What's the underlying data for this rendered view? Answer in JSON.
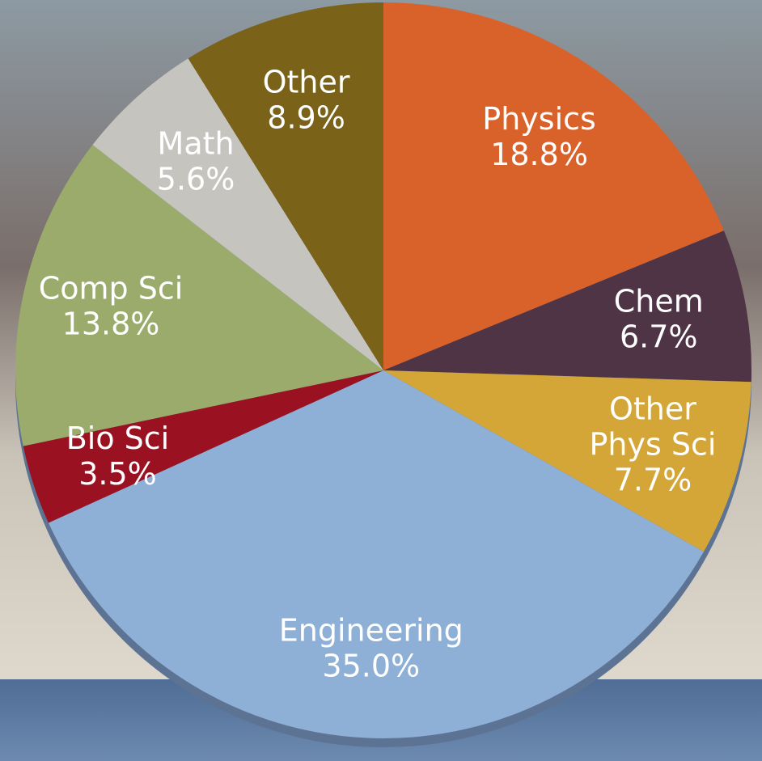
{
  "chart_data": {
    "type": "pie",
    "categories": [
      "Physics",
      "Chem",
      "Other Phys Sci",
      "Engineering",
      "Bio Sci",
      "Comp Sci",
      "Math",
      "Other"
    ],
    "values": [
      18.8,
      6.7,
      7.7,
      35.0,
      3.5,
      13.8,
      5.6,
      8.9
    ],
    "value_labels": [
      "18.8%",
      "6.7%",
      "7.7%",
      "35.0%",
      "3.5%",
      "13.8%",
      "5.6%",
      "8.9%"
    ],
    "colors": [
      "#d9622b",
      "#4f3446",
      "#d4a537",
      "#8eafd6",
      "#9a1222",
      "#9bab6b",
      "#c6c4bf",
      "#7a6219"
    ]
  }
}
